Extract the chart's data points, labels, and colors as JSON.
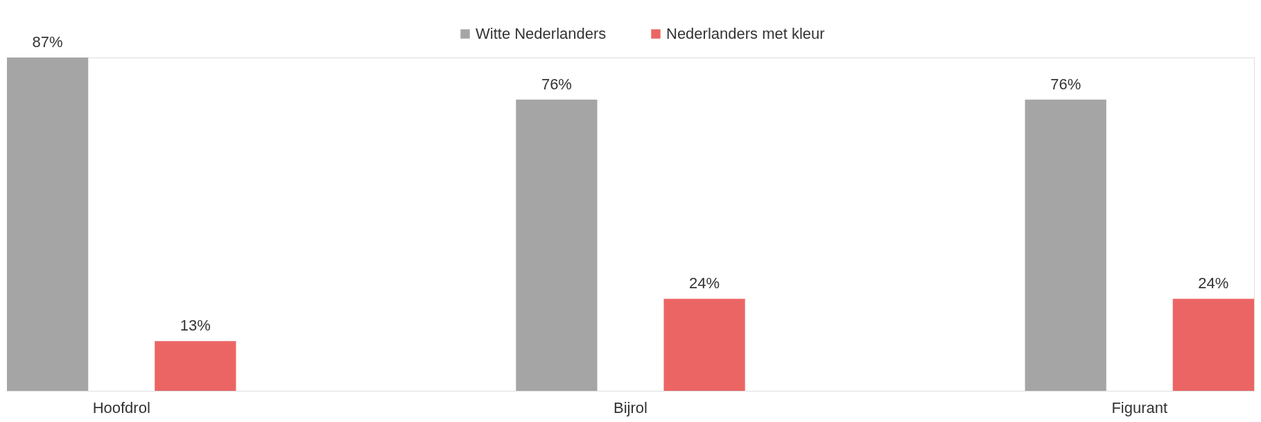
{
  "chart_data": {
    "type": "bar",
    "categories": [
      "Hoofdrol",
      "Bijrol",
      "Figurant"
    ],
    "series": [
      {
        "name": "Witte Nederlanders",
        "color": "#a5a5a5",
        "values": [
          87,
          76,
          76
        ],
        "value_labels": [
          "87%",
          "76%",
          "76%"
        ]
      },
      {
        "name": "Nederlanders met kleur",
        "color": "#ec6565",
        "values": [
          13,
          24,
          24
        ],
        "value_labels": [
          "13%",
          "24%",
          "24%"
        ]
      }
    ],
    "legend": "top",
    "grid": false
  }
}
